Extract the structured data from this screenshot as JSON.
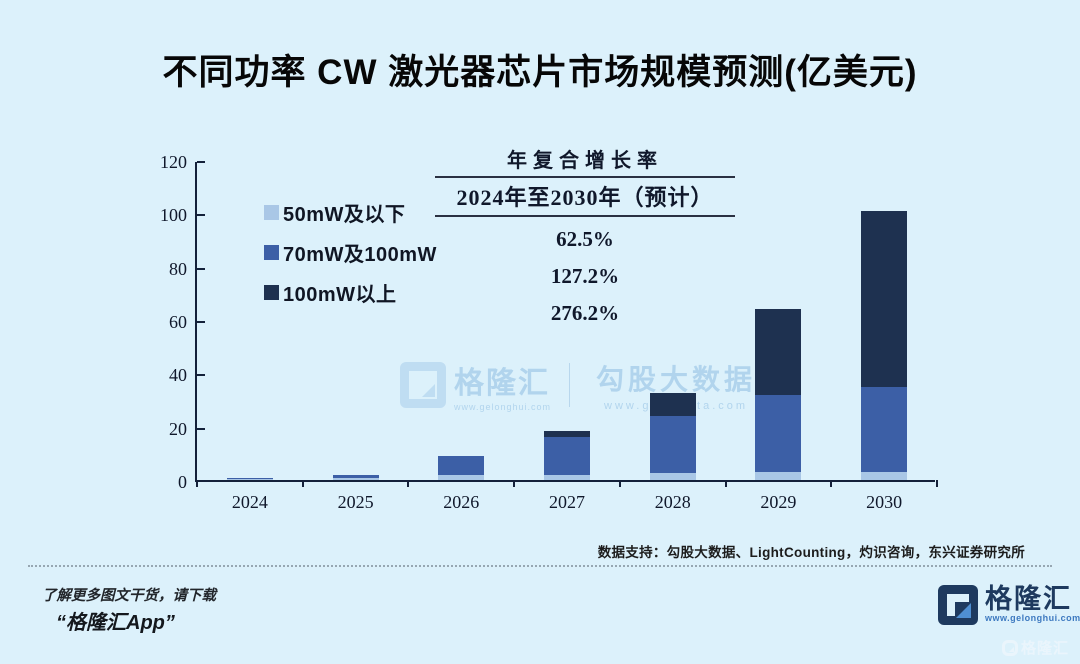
{
  "title": "不同功率 CW 激光器芯片市场规模预测(亿美元)",
  "chart_data": {
    "type": "bar",
    "stacked": true,
    "categories": [
      "2024",
      "2025",
      "2026",
      "2027",
      "2028",
      "2029",
      "2030"
    ],
    "series": [
      {
        "name": "50mW及以下",
        "color": "#a9c7e6",
        "values": [
          0.3,
          0.8,
          2.0,
          2.0,
          2.5,
          3.0,
          3.0
        ]
      },
      {
        "name": "70mW及100mW",
        "color": "#3c5fa6",
        "values": [
          0.4,
          1.2,
          7.0,
          14.0,
          21.5,
          29.0,
          32.0
        ]
      },
      {
        "name": "100mW以上",
        "color": "#1e3150",
        "values": [
          0.0,
          0.0,
          0.0,
          2.5,
          8.5,
          32.0,
          66.0
        ]
      }
    ],
    "totals": [
      0.7,
      2.0,
      9.0,
      18.5,
      32.5,
      64.0,
      101.0
    ],
    "ylim": [
      0,
      120
    ],
    "yticks": [
      0,
      20,
      40,
      60,
      80,
      100,
      120
    ],
    "grid": false,
    "legend_position": "upper-left-inside",
    "axis_color": "#14213a"
  },
  "cagr_table": {
    "header": "年复合增长率",
    "subheader": "2024年至2030年（预计）",
    "rows": [
      "62.5%",
      "127.2%",
      "276.2%"
    ]
  },
  "watermark_center": {
    "brand": "格隆汇",
    "brand_url": "www.gelonghui.com",
    "product": "勾股大数据",
    "product_url": "www.gogudata.com"
  },
  "footer": {
    "source": "数据支持：勾股大数据、LightCounting，灼识咨询，东兴证券研究所",
    "promo_line1": "了解更多图文干货，请下载",
    "promo_line2": "“格隆汇App”",
    "brand_name": "格隆汇",
    "brand_url": "www.gelonghui.com",
    "corner_watermark": "格隆汇"
  },
  "colors": {
    "background": "#dcf1fb",
    "series_light": "#a9c7e6",
    "series_mid": "#3c5fa6",
    "series_dark": "#1e3150",
    "axis": "#14213a",
    "logo_navy": "#1e3a5f",
    "logo_accent": "#4f8fd2",
    "watermark_blue": "#7fb3dd"
  }
}
